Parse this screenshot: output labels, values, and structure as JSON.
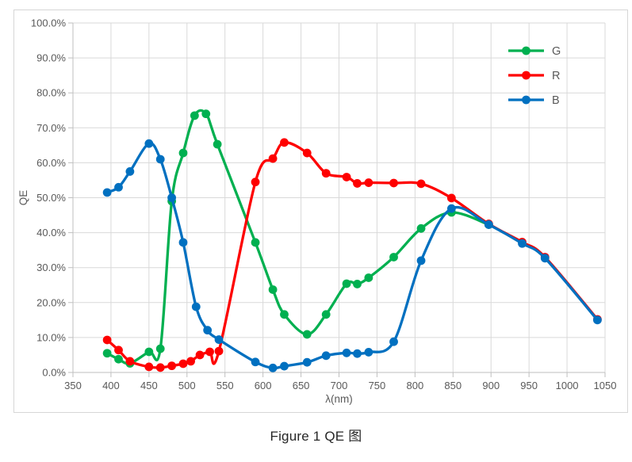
{
  "figure": {
    "caption": "Figure 1 QE 图"
  },
  "chart_data": {
    "type": "line",
    "title": "",
    "xlabel": "λ(nm)",
    "ylabel": "QE",
    "xlim": [
      350,
      1050
    ],
    "ylim": [
      0,
      100
    ],
    "grid": true,
    "legend_position": "inside-top-right",
    "x_ticks": [
      350,
      400,
      450,
      500,
      550,
      600,
      650,
      700,
      750,
      800,
      850,
      900,
      950,
      1000,
      1050
    ],
    "y_tick_labels": [
      "0.0%",
      "10.0%",
      "20.0%",
      "30.0%",
      "40.0%",
      "50.0%",
      "60.0%",
      "70.0%",
      "80.0%",
      "90.0%",
      "100.0%"
    ],
    "colors": {
      "gridline": "#d9d9d9",
      "axis": "#bfbfbf",
      "tick_text": "#595959",
      "axis_title": "#595959"
    },
    "series": [
      {
        "name": "G",
        "color": "#00b050",
        "x": [
          395,
          410,
          425,
          450,
          465,
          480,
          495,
          510,
          525,
          540,
          590,
          613,
          628,
          658,
          683,
          710,
          724,
          739,
          772,
          808,
          848,
          897
        ],
        "y": [
          5.5,
          3.8,
          2.6,
          5.9,
          6.8,
          49.0,
          62.8,
          73.5,
          74.0,
          65.3,
          37.2,
          23.7,
          16.6,
          10.9,
          16.6,
          25.4,
          25.3,
          27.1,
          33.0,
          41.2,
          45.8,
          42.3
        ]
      },
      {
        "name": "R",
        "color": "#fe0000",
        "x": [
          395,
          410,
          425,
          450,
          465,
          480,
          495,
          505,
          517,
          530,
          542,
          590,
          613,
          628,
          658,
          683,
          710,
          724,
          739,
          772,
          808,
          848,
          897,
          941,
          971,
          1040
        ],
        "y": [
          9.3,
          6.4,
          3.2,
          1.6,
          1.4,
          1.9,
          2.5,
          3.2,
          5.0,
          5.9,
          6.1,
          54.5,
          61.2,
          65.8,
          62.8,
          57.0,
          55.9,
          54.1,
          54.3,
          54.2,
          54.0,
          49.9,
          42.5,
          37.3,
          33.0,
          15.2
        ]
      },
      {
        "name": "B",
        "color": "#0070c0",
        "x": [
          395,
          410,
          425,
          450,
          465,
          480,
          495,
          512,
          527,
          542,
          590,
          613,
          628,
          658,
          683,
          710,
          724,
          739,
          772,
          808,
          848,
          897,
          941,
          971,
          1040
        ],
        "y": [
          51.5,
          53.0,
          57.5,
          65.5,
          61.0,
          50.0,
          37.2,
          18.8,
          12.1,
          9.4,
          3.0,
          1.3,
          1.8,
          2.9,
          4.8,
          5.6,
          5.4,
          5.8,
          8.8,
          32.0,
          46.9,
          42.3,
          36.9,
          32.7,
          15.0
        ]
      }
    ]
  }
}
